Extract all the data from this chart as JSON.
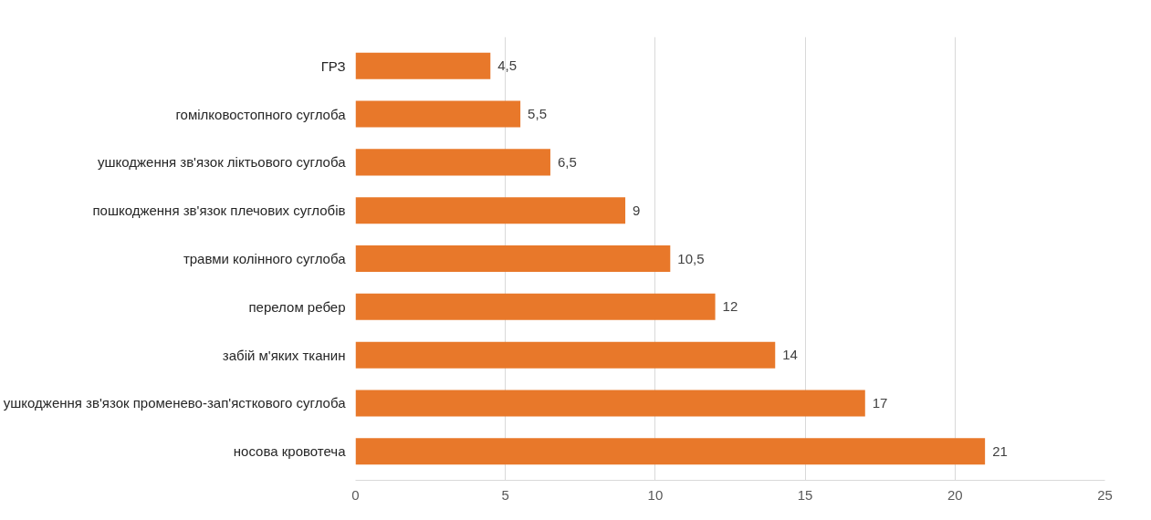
{
  "chart_data": {
    "type": "bar",
    "orientation": "horizontal",
    "categories": [
      "ГРЗ",
      "гомілковостопного суглоба",
      "ушкодження зв'язок ліктьового суглоба",
      "пошкодження зв'язок плечових суглобів",
      "травми колінного суглоба",
      "перелом ребер",
      "забій м'яких тканин",
      "ушкодження зв'язок променево-зап'ясткового суглоба",
      "носова кровотеча"
    ],
    "values": [
      4.5,
      5.5,
      6.5,
      9,
      10.5,
      12,
      14,
      17,
      21
    ],
    "value_labels": [
      "4,5",
      "5,5",
      "6,5",
      "9",
      "10,5",
      "12",
      "14",
      "17",
      "21"
    ],
    "color": "#e8782a",
    "xlim": [
      0,
      25
    ],
    "xticks": [
      0,
      5,
      10,
      15,
      20,
      25
    ],
    "grid": "x"
  }
}
